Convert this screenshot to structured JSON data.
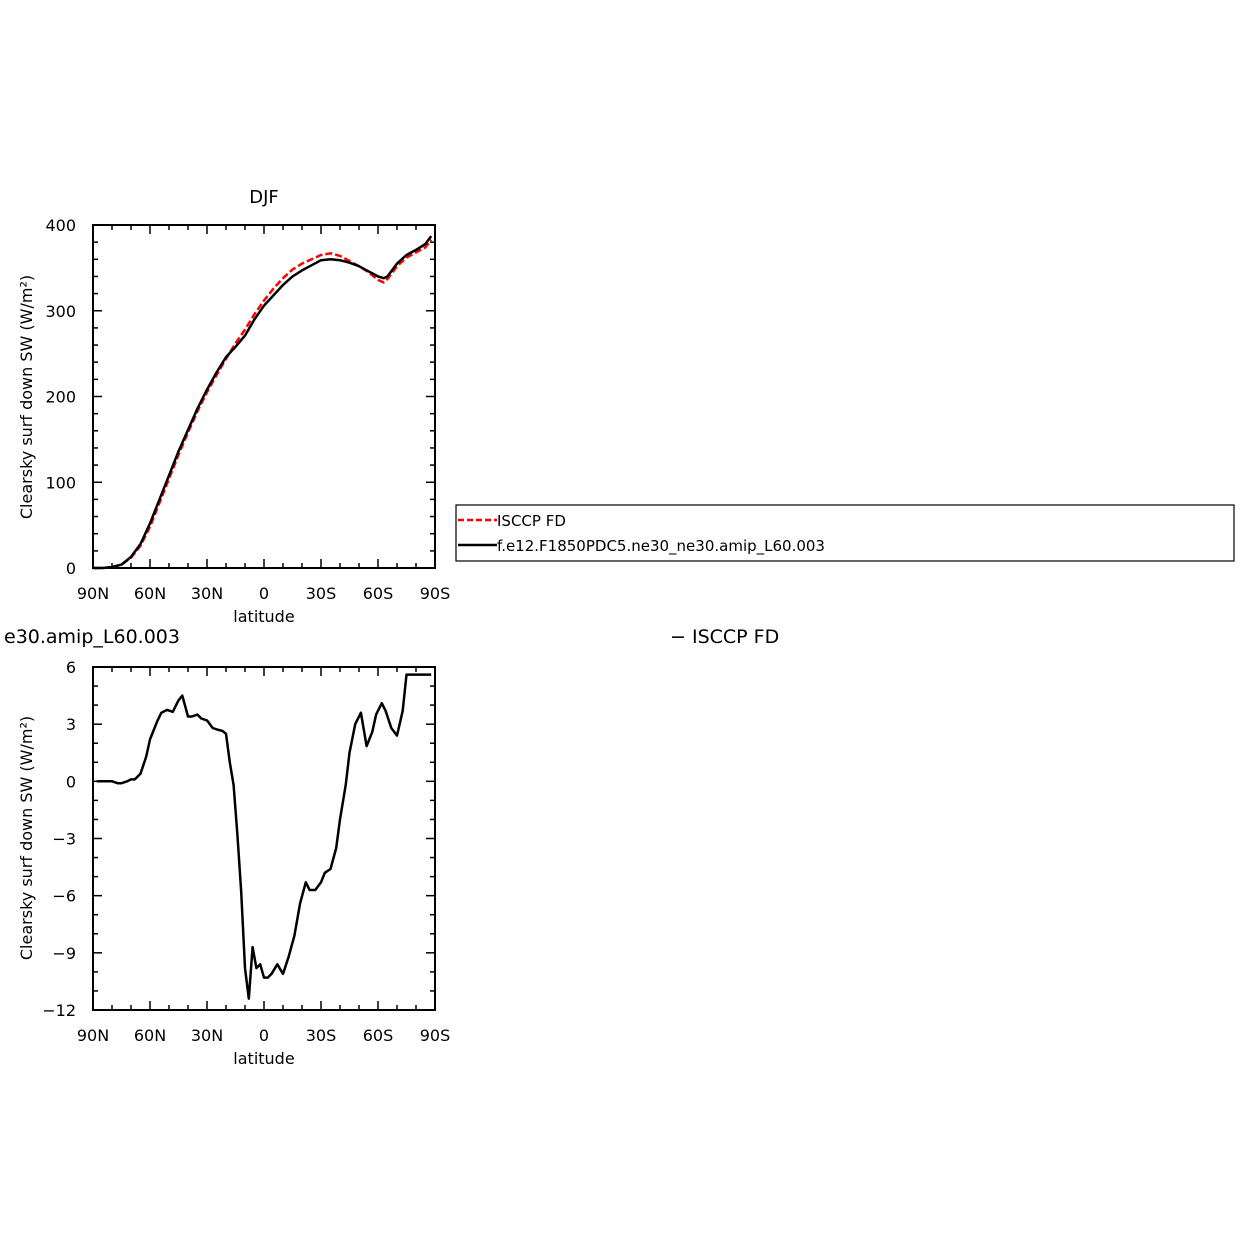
{
  "chart_data": [
    {
      "type": "line",
      "title": "DJF",
      "xlabel": "latitude",
      "ylabel": "Clearsky surf down SW (W/m²)",
      "x_ticks": [
        "90N",
        "60N",
        "30N",
        "0",
        "30S",
        "60S",
        "90S"
      ],
      "y_ticks": [
        "0",
        "100",
        "200",
        "300",
        "400"
      ],
      "xlim": [
        90,
        -90
      ],
      "ylim": [
        0,
        400
      ],
      "legend": "right",
      "series": [
        {
          "name": "ISCCP FD",
          "color": "#ff0000",
          "style": "dashed",
          "x": [
            90,
            85,
            80,
            75,
            70,
            65,
            60,
            55,
            50,
            45,
            40,
            35,
            30,
            25,
            20,
            15,
            10,
            5,
            0,
            -5,
            -10,
            -15,
            -20,
            -25,
            -30,
            -35,
            -40,
            -45,
            -50,
            -55,
            -60,
            -63,
            -65,
            -70,
            -75,
            -80,
            -85,
            -88
          ],
          "values": [
            0,
            0,
            1,
            4,
            12,
            26,
            48,
            76,
            104,
            132,
            158,
            183,
            205,
            225,
            244,
            262,
            278,
            296,
            312,
            326,
            338,
            348,
            355,
            360,
            365,
            367,
            364,
            358,
            352,
            345,
            336,
            333,
            337,
            352,
            362,
            368,
            374,
            383
          ]
        },
        {
          "name": "f.e12.F1850PDC5.ne30_ne30.amip_L60.003",
          "color": "#000000",
          "style": "solid",
          "x": [
            90,
            85,
            80,
            75,
            70,
            65,
            60,
            55,
            50,
            45,
            40,
            35,
            30,
            25,
            20,
            15,
            10,
            5,
            0,
            -5,
            -10,
            -15,
            -20,
            -25,
            -30,
            -35,
            -40,
            -45,
            -50,
            -55,
            -60,
            -63,
            -65,
            -70,
            -75,
            -80,
            -85,
            -88
          ],
          "values": [
            0,
            0,
            1,
            4,
            13,
            28,
            52,
            80,
            108,
            136,
            161,
            186,
            208,
            228,
            246,
            258,
            271,
            290,
            306,
            318,
            330,
            340,
            347,
            353,
            359,
            360,
            359,
            356,
            352,
            346,
            340,
            338,
            340,
            355,
            365,
            371,
            378,
            387
          ]
        }
      ]
    },
    {
      "type": "line",
      "title": "e30.amip_L60.003",
      "title_right": "− ISCCP FD",
      "xlabel": "latitude",
      "ylabel": "Clearsky surf down SW (W/m²)",
      "x_ticks": [
        "90N",
        "60N",
        "30N",
        "0",
        "30S",
        "60S",
        "90S"
      ],
      "y_ticks": [
        "6",
        "3",
        "0",
        "−3",
        "−6",
        "−9",
        "−12"
      ],
      "xlim": [
        90,
        -90
      ],
      "ylim": [
        -12,
        6
      ],
      "series": [
        {
          "color": "#000000",
          "x": [
            88,
            85,
            80,
            77,
            75,
            72,
            70,
            68,
            65,
            62,
            60,
            58,
            56,
            54,
            51,
            48,
            45,
            43,
            40,
            38,
            35,
            33,
            30,
            27,
            24,
            22,
            20,
            18,
            16,
            14,
            12,
            10,
            8,
            6,
            4,
            2,
            0,
            -2,
            -4,
            -7,
            -10,
            -13,
            -16,
            -19,
            -22,
            -24,
            -27,
            -30,
            -32,
            -35,
            -38,
            -40,
            -43,
            -45,
            -48,
            -51,
            -54,
            -57,
            -59,
            -62,
            -64,
            -67,
            -70,
            -73,
            -75,
            -77,
            -80,
            -83,
            -85,
            -88
          ],
          "values": [
            0,
            0,
            0,
            -0.1,
            -0.1,
            0,
            0.1,
            0.1,
            0.4,
            1.3,
            2.2,
            2.7,
            3.2,
            3.6,
            3.75,
            3.65,
            4.25,
            4.5,
            3.4,
            3.4,
            3.5,
            3.3,
            3.2,
            2.8,
            2.7,
            2.65,
            2.5,
            1.0,
            -0.2,
            -2.8,
            -5.8,
            -9.8,
            -11.4,
            -8.7,
            -9.8,
            -9.6,
            -10.3,
            -10.3,
            -10.1,
            -9.6,
            -10.1,
            -9.2,
            -8.1,
            -6.4,
            -5.3,
            -5.7,
            -5.7,
            -5.3,
            -4.8,
            -4.6,
            -3.5,
            -2.0,
            -0.2,
            1.5,
            3.0,
            3.6,
            1.85,
            2.6,
            3.5,
            4.1,
            3.7,
            2.8,
            2.4,
            3.7,
            5.6,
            5.6,
            5.6,
            5.6,
            5.6,
            5.6
          ]
        }
      ]
    }
  ],
  "legend": {
    "entries": [
      {
        "label": "ISCCP FD",
        "color": "#ff0000",
        "style": "dashed"
      },
      {
        "label": "f.e12.F1850PDC5.ne30_ne30.amip_L60.003",
        "color": "#000000",
        "style": "solid"
      }
    ]
  }
}
